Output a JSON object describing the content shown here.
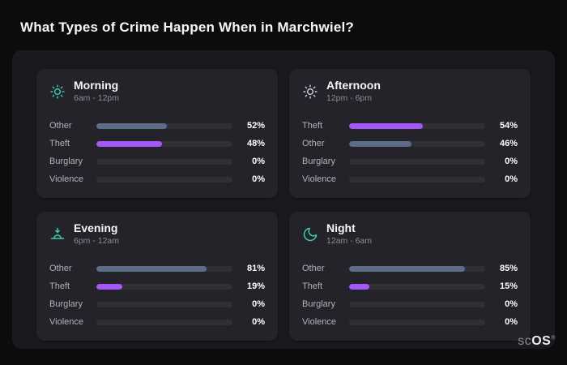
{
  "title": "What Types of Crime Happen When in Marchwiel?",
  "brand": {
    "prefix": "sc",
    "suffix": "OS",
    "registered": "®"
  },
  "colors": {
    "background": "#0c0c0f",
    "panel": "#1a1a1e",
    "card": "#232329",
    "track": "#2f2f36",
    "bar_slate": "#5d6b89",
    "bar_purple": "#a259f7",
    "icon_teal": "#3bc9b0"
  },
  "cards": [
    {
      "id": "morning",
      "icon": "sun-icon",
      "icon_color": "#3bc9b0",
      "title": "Morning",
      "subtitle": "6am - 12pm",
      "rows": [
        {
          "label": "Other",
          "value": 52,
          "display": "52%",
          "color": "#5d6b89"
        },
        {
          "label": "Theft",
          "value": 48,
          "display": "48%",
          "color": "#a259f7"
        },
        {
          "label": "Burglary",
          "value": 0,
          "display": "0%",
          "color": "#5d6b89"
        },
        {
          "label": "Violence",
          "value": 0,
          "display": "0%",
          "color": "#5d6b89"
        }
      ]
    },
    {
      "id": "afternoon",
      "icon": "sun-icon",
      "icon_color": "#c7ccd6",
      "title": "Afternoon",
      "subtitle": "12pm - 6pm",
      "rows": [
        {
          "label": "Theft",
          "value": 54,
          "display": "54%",
          "color": "#a259f7"
        },
        {
          "label": "Other",
          "value": 46,
          "display": "46%",
          "color": "#5d6b89"
        },
        {
          "label": "Burglary",
          "value": 0,
          "display": "0%",
          "color": "#5d6b89"
        },
        {
          "label": "Violence",
          "value": 0,
          "display": "0%",
          "color": "#5d6b89"
        }
      ]
    },
    {
      "id": "evening",
      "icon": "sunset-icon",
      "icon_color": "#3bc9b0",
      "title": "Evening",
      "subtitle": "6pm - 12am",
      "rows": [
        {
          "label": "Other",
          "value": 81,
          "display": "81%",
          "color": "#5d6b89"
        },
        {
          "label": "Theft",
          "value": 19,
          "display": "19%",
          "color": "#a259f7"
        },
        {
          "label": "Burglary",
          "value": 0,
          "display": "0%",
          "color": "#5d6b89"
        },
        {
          "label": "Violence",
          "value": 0,
          "display": "0%",
          "color": "#5d6b89"
        }
      ]
    },
    {
      "id": "night",
      "icon": "moon-icon",
      "icon_color": "#3bc9b0",
      "title": "Night",
      "subtitle": "12am - 6am",
      "rows": [
        {
          "label": "Other",
          "value": 85,
          "display": "85%",
          "color": "#5d6b89"
        },
        {
          "label": "Theft",
          "value": 15,
          "display": "15%",
          "color": "#a259f7"
        },
        {
          "label": "Burglary",
          "value": 0,
          "display": "0%",
          "color": "#5d6b89"
        },
        {
          "label": "Violence",
          "value": 0,
          "display": "0%",
          "color": "#5d6b89"
        }
      ]
    }
  ],
  "chart_data": [
    {
      "type": "bar",
      "orientation": "horizontal",
      "title": "Morning",
      "subtitle": "6am - 12pm",
      "categories": [
        "Other",
        "Theft",
        "Burglary",
        "Violence"
      ],
      "values": [
        52,
        48,
        0,
        0
      ],
      "unit": "%",
      "xlim": [
        0,
        100
      ]
    },
    {
      "type": "bar",
      "orientation": "horizontal",
      "title": "Afternoon",
      "subtitle": "12pm - 6pm",
      "categories": [
        "Theft",
        "Other",
        "Burglary",
        "Violence"
      ],
      "values": [
        54,
        46,
        0,
        0
      ],
      "unit": "%",
      "xlim": [
        0,
        100
      ]
    },
    {
      "type": "bar",
      "orientation": "horizontal",
      "title": "Evening",
      "subtitle": "6pm - 12am",
      "categories": [
        "Other",
        "Theft",
        "Burglary",
        "Violence"
      ],
      "values": [
        81,
        19,
        0,
        0
      ],
      "unit": "%",
      "xlim": [
        0,
        100
      ]
    },
    {
      "type": "bar",
      "orientation": "horizontal",
      "title": "Night",
      "subtitle": "12am - 6am",
      "categories": [
        "Other",
        "Theft",
        "Burglary",
        "Violence"
      ],
      "values": [
        85,
        15,
        0,
        0
      ],
      "unit": "%",
      "xlim": [
        0,
        100
      ]
    }
  ]
}
